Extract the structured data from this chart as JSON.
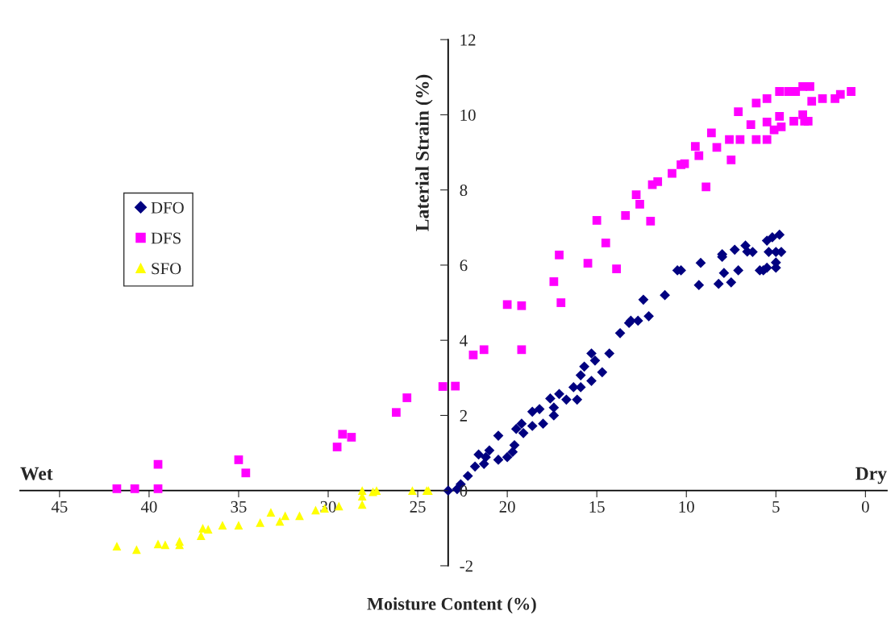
{
  "chart_data": {
    "type": "scatter",
    "xlabel": "Moisture Content (%)",
    "ylabel": "Laterial Strain (%)",
    "annotations": [
      "Wet",
      "Dry"
    ],
    "xlim": [
      47.2,
      -1.2
    ],
    "ylim": [
      -2,
      12
    ],
    "xticks": [
      45,
      40,
      35,
      30,
      25,
      20,
      15,
      10,
      5,
      0
    ],
    "yticks": [
      -2,
      0,
      2,
      4,
      6,
      8,
      10,
      12
    ],
    "grid": false,
    "legend": "left",
    "series": [
      {
        "name": "DFO",
        "color": "#000080",
        "marker": "diamond",
        "x": [
          23.3,
          22.8,
          22.6,
          22.2,
          21.8,
          21.6,
          21.3,
          21.2,
          21.0,
          20.5,
          20.5,
          20.0,
          19.7,
          19.6,
          19.5,
          19.2,
          19.1,
          18.6,
          18.6,
          18.2,
          18.0,
          17.6,
          17.4,
          17.4,
          17.1,
          16.7,
          16.3,
          16.1,
          15.9,
          15.9,
          15.7,
          15.3,
          15.3,
          15.1,
          14.7,
          14.3,
          13.7,
          13.2,
          13.1,
          12.7,
          12.4,
          12.1,
          11.2,
          10.5,
          10.3,
          9.2,
          9.3,
          8.0,
          8.0,
          7.9,
          8.2,
          7.5,
          7.3,
          7.1,
          6.7,
          6.6,
          6.3,
          5.9,
          5.7,
          5.5,
          5.5,
          5.4,
          5.2,
          5.0,
          5.0,
          5.0,
          4.7,
          4.8
        ],
        "values": [
          0.0,
          0.04,
          0.17,
          0.39,
          0.64,
          0.96,
          0.71,
          0.89,
          1.07,
          1.46,
          0.82,
          0.89,
          1.03,
          1.21,
          1.64,
          1.78,
          1.53,
          2.1,
          1.72,
          2.17,
          1.78,
          2.45,
          2.21,
          2.0,
          2.57,
          2.42,
          2.75,
          2.42,
          3.07,
          2.75,
          3.3,
          3.65,
          2.92,
          3.46,
          3.15,
          3.65,
          4.19,
          4.46,
          4.52,
          4.52,
          5.08,
          4.64,
          5.2,
          5.86,
          5.86,
          6.06,
          5.47,
          6.29,
          6.22,
          5.79,
          5.5,
          5.54,
          6.41,
          5.86,
          6.52,
          6.36,
          6.35,
          5.86,
          5.86,
          5.93,
          6.65,
          6.35,
          6.74,
          5.93,
          6.07,
          6.35,
          6.35,
          6.81
        ]
      },
      {
        "name": "DFS",
        "color": "#ff00ff",
        "marker": "square",
        "x": [
          41.8,
          40.8,
          39.5,
          39.5,
          35.0,
          34.6,
          29.5,
          29.2,
          28.7,
          26.2,
          25.6,
          23.6,
          22.9,
          21.9,
          21.3,
          20.0,
          19.2,
          19.2,
          17.4,
          17.1,
          17.0,
          15.5,
          15.0,
          14.5,
          13.9,
          13.4,
          12.8,
          12.6,
          12.0,
          11.9,
          11.6,
          10.8,
          10.3,
          10.1,
          9.5,
          9.3,
          8.9,
          8.6,
          8.3,
          7.6,
          7.5,
          7.1,
          7.0,
          6.4,
          6.1,
          6.1,
          5.5,
          5.5,
          5.5,
          5.1,
          4.8,
          4.7,
          4.8,
          4.3,
          3.9,
          4.0,
          3.4,
          3.2,
          3.5,
          3.5,
          3.1,
          3.0,
          2.4,
          1.7,
          1.4,
          0.8
        ],
        "values": [
          0.05,
          0.05,
          0.05,
          0.7,
          0.82,
          0.47,
          1.16,
          1.5,
          1.42,
          2.08,
          2.47,
          2.77,
          2.78,
          3.61,
          3.75,
          4.95,
          4.92,
          3.75,
          5.56,
          6.27,
          5.0,
          6.05,
          7.19,
          6.59,
          5.9,
          7.32,
          7.87,
          7.62,
          7.17,
          8.14,
          8.22,
          8.44,
          8.67,
          8.7,
          9.16,
          8.91,
          8.08,
          9.52,
          9.13,
          9.34,
          8.8,
          10.08,
          9.34,
          9.74,
          10.31,
          9.34,
          9.81,
          10.43,
          9.34,
          9.6,
          9.96,
          9.68,
          10.62,
          10.62,
          10.62,
          9.83,
          9.83,
          9.83,
          10.0,
          10.75,
          10.75,
          10.36,
          10.43,
          10.43,
          10.54,
          10.62
        ]
      },
      {
        "name": "SFO",
        "color": "#ffff00",
        "marker": "triangle",
        "x": [
          41.8,
          40.7,
          39.5,
          39.1,
          38.3,
          38.3,
          37.1,
          37.0,
          36.7,
          35.9,
          35.0,
          33.8,
          33.2,
          32.7,
          32.4,
          31.6,
          30.7,
          30.2,
          29.4,
          28.1,
          28.1,
          28.1,
          27.5,
          27.3,
          25.3,
          24.5,
          24.4
        ],
        "values": [
          -1.48,
          -1.57,
          -1.42,
          -1.44,
          -1.35,
          -1.44,
          -1.2,
          -1.0,
          -1.03,
          -0.92,
          -0.92,
          -0.85,
          -0.58,
          -0.82,
          -0.67,
          -0.67,
          -0.52,
          -0.47,
          -0.41,
          0.0,
          -0.15,
          -0.37,
          -0.03,
          0.0,
          0.0,
          0.0,
          0.0
        ]
      }
    ]
  }
}
